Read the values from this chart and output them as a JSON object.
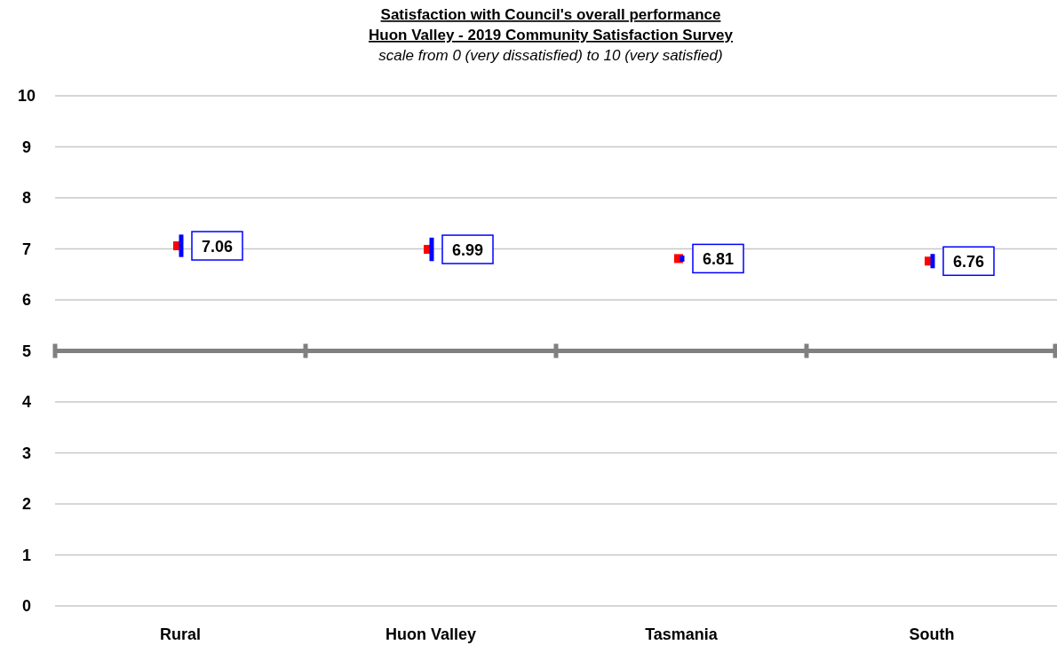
{
  "chart_data": {
    "type": "scatter",
    "title": "Satisfaction  with Council's overall performance\nHuon Valley - 2019 Community Satisfaction Survey",
    "subtitle": "scale from 0 (very dissatisfied) to 10 (very satisfied)",
    "categories": [
      "Rural",
      "Huon Valley",
      "Tasmania",
      "South"
    ],
    "series": [
      {
        "color": "#ff0000",
        "values": [
          7.06,
          6.99,
          6.81,
          6.76
        ],
        "errors": [
          0.22,
          0.23,
          0.06,
          0.14
        ]
      }
    ],
    "ylim": [
      0,
      10
    ],
    "yticks": [
      0,
      1,
      2,
      3,
      4,
      5,
      6,
      7,
      8,
      9,
      10
    ],
    "grid": "y",
    "marker": "square",
    "data_labels": true,
    "ref_lines": [
      {
        "axis": "y",
        "value": 5,
        "color": "#808080"
      }
    ]
  }
}
